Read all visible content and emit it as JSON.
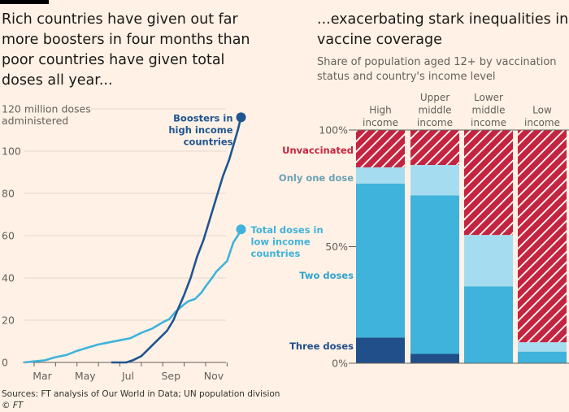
{
  "titles": {
    "left": "Rich countries have given out far more boosters in four months than poor countries have given total doses all year...",
    "right": "...exacerbating stark inequalities in vaccine coverage",
    "right_subtitle": "Share of population aged 12+ by vaccination status and country's income level"
  },
  "source": "Sources: FT analysis of Our World in Data; UN population division",
  "copyright": "© FT",
  "colors": {
    "background": "#fff1e5",
    "dark_blue": "#1f5591",
    "light_blue": "#3fb3db",
    "pale_blue": "#a6dcef",
    "red": "#c4243f",
    "three_doses": "#204f8a"
  },
  "chart_data": [
    {
      "type": "line",
      "ylabel": "120 million doses administered",
      "ylim": [
        0,
        120
      ],
      "yticks": [
        "0",
        "20",
        "40",
        "60",
        "80",
        "100",
        "120 million doses"
      ],
      "ytick_values": [
        0,
        20,
        40,
        60,
        80,
        100,
        120
      ],
      "ylabel_line2": "administered",
      "xticks": [
        "Mar",
        "May",
        "Jul",
        "Sep",
        "Nov"
      ],
      "x_unit": "month index (Feb=1 ... Nov=10)",
      "grid": true,
      "series": [
        {
          "name": "Total doses in low income countries",
          "label_lines": [
            "Total doses in",
            "low income",
            "countries"
          ],
          "color": "#3fb3db",
          "x": [
            0.0,
            1.0,
            1.5,
            2.0,
            2.5,
            3.0,
            3.5,
            4.0,
            4.5,
            5.0,
            5.5,
            6.0,
            6.5,
            7.0,
            7.3,
            7.6,
            8.0,
            8.2,
            8.5,
            8.8,
            9.0,
            9.3,
            9.5,
            9.7,
            10.0,
            10.2,
            10.3,
            10.5,
            10.65
          ],
          "y": [
            0,
            0.5,
            1,
            2.5,
            3.5,
            5.5,
            7,
            8.5,
            9.5,
            10.5,
            11.5,
            14,
            16,
            19,
            20.5,
            24,
            27.5,
            29,
            30,
            33,
            36,
            40,
            43,
            45,
            48,
            54,
            57,
            60,
            63
          ]
        },
        {
          "name": "Boosters in high income countries",
          "label_lines": [
            "Boosters in",
            "high income",
            "countries"
          ],
          "color": "#1f5591",
          "x": [
            4.6,
            5.0,
            5.3,
            5.6,
            6.0,
            6.3,
            6.6,
            7.0,
            7.2,
            7.5,
            7.7,
            8.0,
            8.3,
            8.6,
            8.9,
            9.2,
            9.5,
            9.8,
            10.1,
            10.3,
            10.5,
            10.65
          ],
          "y": [
            0,
            0,
            0,
            1,
            3,
            6,
            9,
            13,
            15,
            20,
            25,
            32,
            40,
            50,
            58,
            68,
            78,
            88,
            96,
            103,
            110,
            116
          ]
        }
      ]
    },
    {
      "type": "bar",
      "stacked": true,
      "ylim": [
        0,
        100
      ],
      "yticks": [
        "0%",
        "50%",
        "100%"
      ],
      "categories": [
        "High income",
        "Upper middle income",
        "Lower middle income",
        "Low income"
      ],
      "category_lines": [
        [
          "High",
          "income"
        ],
        [
          "Upper",
          "middle",
          "income"
        ],
        [
          "Lower",
          "middle",
          "income"
        ],
        [
          "Low",
          "income"
        ]
      ],
      "series": [
        {
          "name": "Three doses",
          "color": "#204f8a",
          "values": [
            11,
            4,
            0,
            0
          ]
        },
        {
          "name": "Two doses",
          "color": "#3fb3db",
          "values": [
            66,
            68,
            33,
            5
          ]
        },
        {
          "name": "Only one dose",
          "color": "#a6dcef",
          "values": [
            7,
            13,
            22,
            4
          ]
        },
        {
          "name": "Unvaccinated",
          "color": "#c4243f",
          "values": [
            16,
            15,
            45,
            91
          ],
          "pattern": "hatched"
        }
      ]
    }
  ]
}
